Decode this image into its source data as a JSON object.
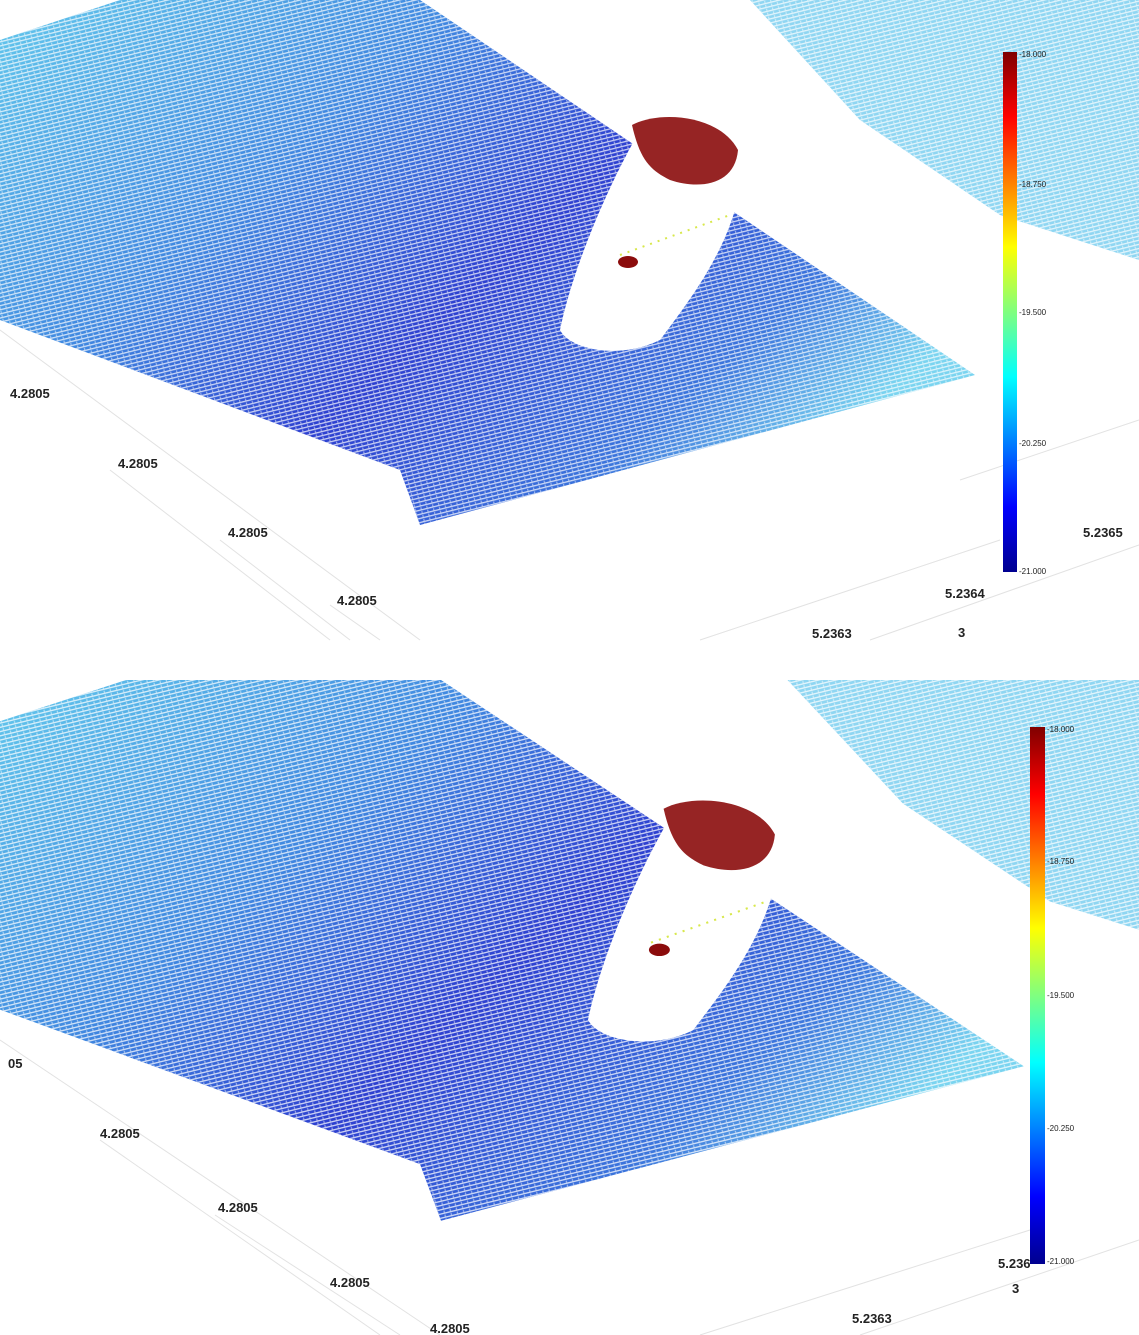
{
  "panels": [
    {
      "axis_labels": [
        "4.2805",
        "4.2805",
        "4.2805",
        "4.2805",
        "5.2365",
        "5.2364",
        "5.2363",
        "3"
      ],
      "colorbar_ticks": [
        "-18.000",
        "-18.750",
        "-19.500",
        "-20.250",
        "-21.000"
      ]
    },
    {
      "axis_labels": [
        "05",
        "4.2805",
        "4.2805",
        "4.2805",
        "4.2805",
        "5.236",
        "5.2363",
        "3"
      ],
      "colorbar_ticks": [
        "-18.000",
        "-18.750",
        "-19.500",
        "-20.250",
        "-21.000"
      ]
    }
  ]
}
